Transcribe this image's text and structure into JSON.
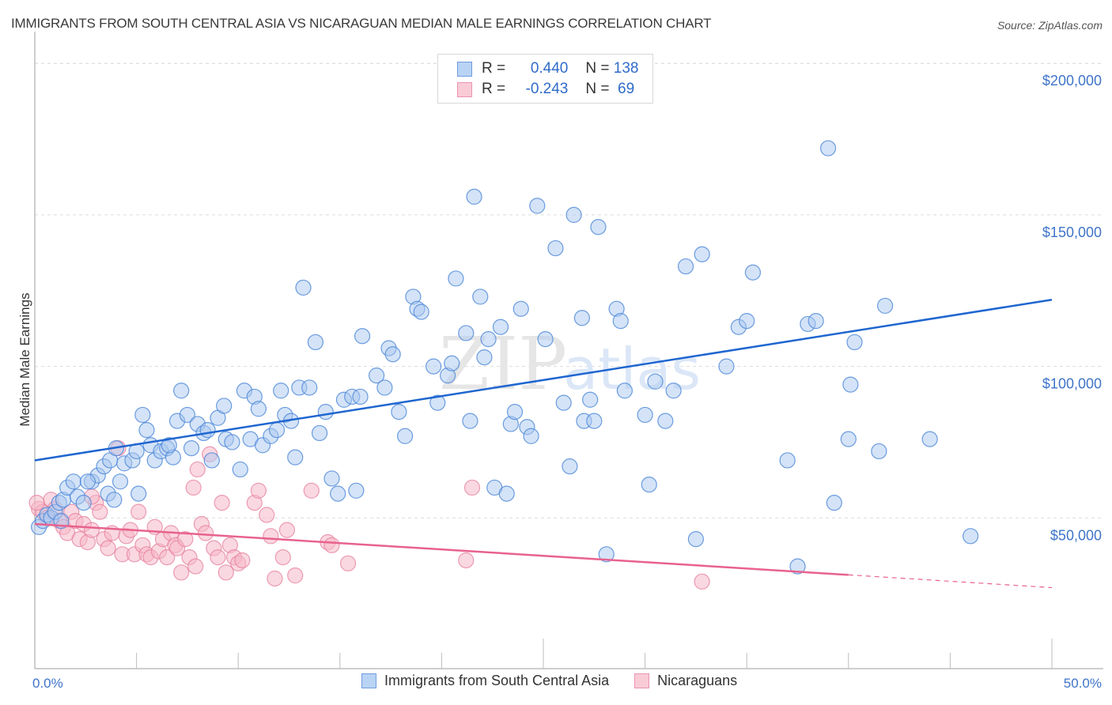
{
  "header": {
    "title": "IMMIGRANTS FROM SOUTH CENTRAL ASIA VS NICARAGUAN MEDIAN MALE EARNINGS CORRELATION CHART",
    "source": "Source: ZipAtlas.com"
  },
  "legend_top": {
    "rows": [
      {
        "r_label": "R = ",
        "r_value": "0.440",
        "n_label": "N = ",
        "n_value": "138"
      },
      {
        "r_label": "R = ",
        "r_value": "-0.243",
        "n_label": "N = ",
        "n_value": " 69"
      }
    ]
  },
  "legend_bottom": {
    "items": [
      {
        "label": "Immigrants from South Central Asia"
      },
      {
        "label": "Nicaraguans"
      }
    ]
  },
  "watermark": {
    "zip": "ZIP",
    "atlas": "atlas"
  },
  "colors": {
    "blue_fill": "#a9c8f0",
    "blue_stroke": "#4a86d8",
    "blue_line": "#1f66d0",
    "pink_fill": "#f6b8c9",
    "pink_stroke": "#e67d9c",
    "pink_line": "#e8628e",
    "tick_text": "#3f74c9"
  },
  "chart_data": {
    "type": "scatter",
    "title": "IMMIGRANTS FROM SOUTH CENTRAL ASIA VS NICARAGUAN MEDIAN MALE EARNINGS CORRELATION CHART",
    "xlabel": "",
    "ylabel": "Median Male Earnings",
    "xlim": [
      0,
      50
    ],
    "ylim": [
      0,
      205000
    ],
    "x_ticks": [
      {
        "value": 0,
        "label": "0.0%"
      },
      {
        "value": 50,
        "label": "50.0%"
      }
    ],
    "x_minor_ticks": [
      0,
      5,
      10,
      15,
      20,
      25,
      30,
      35,
      40,
      45,
      50
    ],
    "y_ticks": [
      {
        "value": 50000,
        "label": "$50,000"
      },
      {
        "value": 100000,
        "label": "$100,000"
      },
      {
        "value": 150000,
        "label": "$150,000"
      },
      {
        "value": 200000,
        "label": "$200,000"
      }
    ],
    "grid": "horizontal-dashed",
    "legend_position": "top-center",
    "series": [
      {
        "name": "Immigrants from South Central Asia",
        "R": 0.44,
        "N": 138,
        "trend": {
          "x": [
            0,
            50
          ],
          "y": [
            69000,
            122000
          ],
          "dashed_from": null
        },
        "points": [
          [
            0.2,
            47000
          ],
          [
            0.4,
            49000
          ],
          [
            0.6,
            51000
          ],
          [
            0.8,
            50000
          ],
          [
            1.0,
            52000
          ],
          [
            1.2,
            55000
          ],
          [
            1.4,
            56000
          ],
          [
            1.6,
            60000
          ],
          [
            1.9,
            62000
          ],
          [
            2.1,
            57000
          ],
          [
            2.4,
            55000
          ],
          [
            2.8,
            62000
          ],
          [
            3.1,
            64000
          ],
          [
            3.4,
            67000
          ],
          [
            3.6,
            58000
          ],
          [
            3.7,
            69000
          ],
          [
            4.0,
            73000
          ],
          [
            4.2,
            62000
          ],
          [
            4.4,
            68000
          ],
          [
            4.8,
            69000
          ],
          [
            5.0,
            72000
          ],
          [
            5.1,
            58000
          ],
          [
            5.3,
            84000
          ],
          [
            5.5,
            79000
          ],
          [
            5.7,
            74000
          ],
          [
            5.9,
            69000
          ],
          [
            6.2,
            72000
          ],
          [
            6.5,
            73000
          ],
          [
            6.8,
            70000
          ],
          [
            7.0,
            82000
          ],
          [
            7.2,
            92000
          ],
          [
            7.5,
            84000
          ],
          [
            7.7,
            73000
          ],
          [
            8.0,
            81000
          ],
          [
            8.3,
            78000
          ],
          [
            8.5,
            79000
          ],
          [
            8.7,
            69000
          ],
          [
            9.0,
            83000
          ],
          [
            9.3,
            87000
          ],
          [
            9.4,
            76000
          ],
          [
            9.7,
            75000
          ],
          [
            10.1,
            66000
          ],
          [
            10.3,
            92000
          ],
          [
            10.6,
            76000
          ],
          [
            10.8,
            90000
          ],
          [
            11.0,
            86000
          ],
          [
            11.2,
            74000
          ],
          [
            11.6,
            77000
          ],
          [
            11.9,
            79000
          ],
          [
            12.1,
            92000
          ],
          [
            12.3,
            84000
          ],
          [
            12.6,
            82000
          ],
          [
            12.8,
            70000
          ],
          [
            13.0,
            93000
          ],
          [
            13.2,
            126000
          ],
          [
            13.5,
            93000
          ],
          [
            13.8,
            108000
          ],
          [
            14.0,
            78000
          ],
          [
            14.3,
            85000
          ],
          [
            14.6,
            63000
          ],
          [
            14.9,
            58000
          ],
          [
            15.2,
            89000
          ],
          [
            15.6,
            90000
          ],
          [
            15.8,
            59000
          ],
          [
            16.0,
            90000
          ],
          [
            16.1,
            110000
          ],
          [
            16.8,
            97000
          ],
          [
            17.2,
            93000
          ],
          [
            17.4,
            106000
          ],
          [
            17.6,
            104000
          ],
          [
            17.9,
            85000
          ],
          [
            18.2,
            77000
          ],
          [
            18.6,
            123000
          ],
          [
            18.8,
            119000
          ],
          [
            19.0,
            118000
          ],
          [
            19.6,
            100000
          ],
          [
            19.8,
            88000
          ],
          [
            20.3,
            97000
          ],
          [
            20.5,
            101000
          ],
          [
            20.7,
            129000
          ],
          [
            21.2,
            111000
          ],
          [
            21.4,
            82000
          ],
          [
            21.6,
            156000
          ],
          [
            21.9,
            123000
          ],
          [
            22.1,
            103000
          ],
          [
            22.3,
            109000
          ],
          [
            22.6,
            60000
          ],
          [
            22.9,
            113000
          ],
          [
            23.2,
            58000
          ],
          [
            23.4,
            81000
          ],
          [
            23.6,
            85000
          ],
          [
            23.9,
            119000
          ],
          [
            24.2,
            80000
          ],
          [
            24.4,
            77000
          ],
          [
            24.7,
            153000
          ],
          [
            25.1,
            109000
          ],
          [
            25.6,
            139000
          ],
          [
            26.0,
            88000
          ],
          [
            26.3,
            67000
          ],
          [
            26.5,
            150000
          ],
          [
            26.9,
            116000
          ],
          [
            27.0,
            82000
          ],
          [
            27.3,
            89000
          ],
          [
            27.5,
            82000
          ],
          [
            27.7,
            146000
          ],
          [
            28.1,
            38000
          ],
          [
            28.6,
            119000
          ],
          [
            28.8,
            115000
          ],
          [
            29.0,
            92000
          ],
          [
            30.0,
            84000
          ],
          [
            30.2,
            61000
          ],
          [
            30.5,
            95000
          ],
          [
            31.0,
            82000
          ],
          [
            31.4,
            92000
          ],
          [
            32.0,
            133000
          ],
          [
            32.5,
            43000
          ],
          [
            32.8,
            137000
          ],
          [
            34.0,
            100000
          ],
          [
            34.6,
            113000
          ],
          [
            35.0,
            115000
          ],
          [
            35.3,
            131000
          ],
          [
            37.0,
            69000
          ],
          [
            37.5,
            34000
          ],
          [
            38.0,
            114000
          ],
          [
            38.4,
            115000
          ],
          [
            39.0,
            172000
          ],
          [
            39.3,
            55000
          ],
          [
            40.0,
            76000
          ],
          [
            40.1,
            94000
          ],
          [
            40.3,
            108000
          ],
          [
            41.5,
            72000
          ],
          [
            41.8,
            120000
          ],
          [
            44.0,
            76000
          ],
          [
            46.0,
            44000
          ],
          [
            1.3,
            49000
          ],
          [
            2.6,
            62000
          ],
          [
            3.9,
            56000
          ],
          [
            6.6,
            74000
          ]
        ]
      },
      {
        "name": "Nicaraguans",
        "R": -0.243,
        "N": 69,
        "trend": {
          "x": [
            0,
            50
          ],
          "y": [
            48000,
            27000
          ],
          "solid_until": 40.0
        },
        "points": [
          [
            0.2,
            53000
          ],
          [
            0.4,
            52000
          ],
          [
            0.6,
            50000
          ],
          [
            0.8,
            56000
          ],
          [
            1.0,
            53000
          ],
          [
            1.2,
            49000
          ],
          [
            1.4,
            47000
          ],
          [
            1.6,
            45000
          ],
          [
            1.8,
            52000
          ],
          [
            2.0,
            49000
          ],
          [
            2.2,
            43000
          ],
          [
            2.4,
            48000
          ],
          [
            2.6,
            42000
          ],
          [
            2.8,
            46000
          ],
          [
            3.0,
            55000
          ],
          [
            3.2,
            52000
          ],
          [
            3.4,
            43000
          ],
          [
            3.6,
            40000
          ],
          [
            3.8,
            45000
          ],
          [
            4.1,
            73000
          ],
          [
            4.3,
            38000
          ],
          [
            4.5,
            44000
          ],
          [
            4.7,
            46000
          ],
          [
            4.9,
            38000
          ],
          [
            5.1,
            52000
          ],
          [
            5.3,
            41000
          ],
          [
            5.5,
            38000
          ],
          [
            5.7,
            37000
          ],
          [
            5.9,
            47000
          ],
          [
            6.1,
            39000
          ],
          [
            6.3,
            43000
          ],
          [
            6.5,
            37000
          ],
          [
            6.7,
            45000
          ],
          [
            6.9,
            41000
          ],
          [
            7.0,
            40000
          ],
          [
            7.2,
            32000
          ],
          [
            7.4,
            43000
          ],
          [
            7.6,
            37000
          ],
          [
            7.8,
            60000
          ],
          [
            7.9,
            34000
          ],
          [
            8.0,
            66000
          ],
          [
            8.2,
            48000
          ],
          [
            8.4,
            45000
          ],
          [
            8.6,
            71000
          ],
          [
            8.8,
            40000
          ],
          [
            9.0,
            37000
          ],
          [
            9.2,
            55000
          ],
          [
            9.4,
            32000
          ],
          [
            9.6,
            41000
          ],
          [
            9.8,
            37000
          ],
          [
            10.0,
            35000
          ],
          [
            10.2,
            36000
          ],
          [
            10.8,
            55000
          ],
          [
            11.0,
            59000
          ],
          [
            11.4,
            51000
          ],
          [
            11.6,
            44000
          ],
          [
            11.8,
            30000
          ],
          [
            12.2,
            37000
          ],
          [
            12.4,
            46000
          ],
          [
            12.8,
            31000
          ],
          [
            13.6,
            59000
          ],
          [
            14.4,
            42000
          ],
          [
            14.6,
            41000
          ],
          [
            15.4,
            35000
          ],
          [
            21.2,
            36000
          ],
          [
            21.5,
            60000
          ],
          [
            32.8,
            29000
          ],
          [
            0.1,
            55000
          ],
          [
            2.8,
            57000
          ]
        ]
      }
    ]
  }
}
